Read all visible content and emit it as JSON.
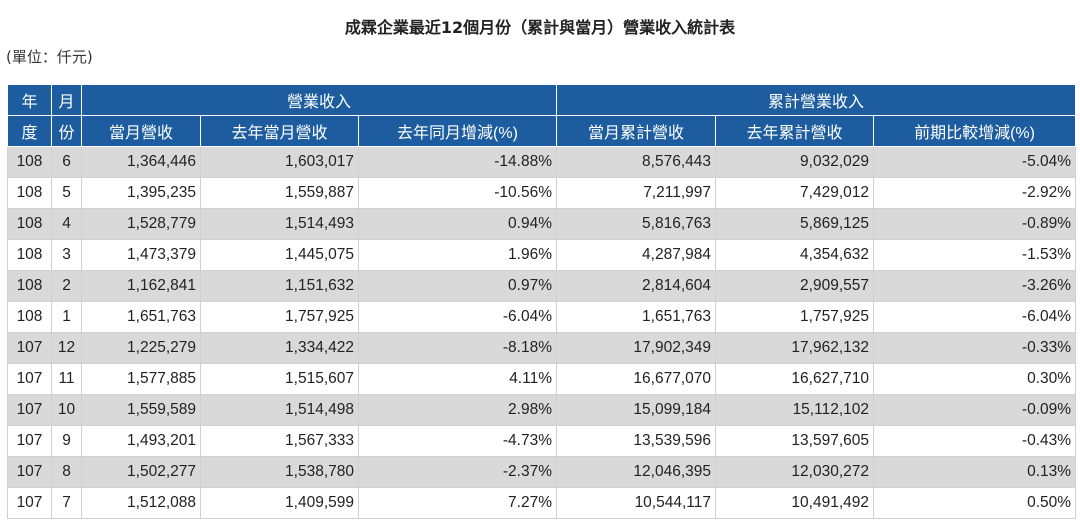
{
  "title": "成霖企業最近12個月份（累計與當月）營業收入統計表",
  "unit": "(單位：仟元)",
  "header": {
    "year_top": "年",
    "year_bottom": "度",
    "month_top": "月",
    "month_bottom": "份",
    "group_monthly": "營業收入",
    "group_cumulative": "累計營業收入",
    "columns": [
      "當月營收",
      "去年當月營收",
      "去年同月增減(%)",
      "當月累計營收",
      "去年累計營收",
      "前期比較增減(%)"
    ]
  },
  "rows": [
    {
      "year": "108",
      "month": "6",
      "cur": "1,364,446",
      "prev": "1,603,017",
      "yoy": "-14.88%",
      "cum": "8,576,443",
      "prev_cum": "9,032,029",
      "cum_chg": "-5.04%"
    },
    {
      "year": "108",
      "month": "5",
      "cur": "1,395,235",
      "prev": "1,559,887",
      "yoy": "-10.56%",
      "cum": "7,211,997",
      "prev_cum": "7,429,012",
      "cum_chg": "-2.92%"
    },
    {
      "year": "108",
      "month": "4",
      "cur": "1,528,779",
      "prev": "1,514,493",
      "yoy": "0.94%",
      "cum": "5,816,763",
      "prev_cum": "5,869,125",
      "cum_chg": "-0.89%"
    },
    {
      "year": "108",
      "month": "3",
      "cur": "1,473,379",
      "prev": "1,445,075",
      "yoy": "1.96%",
      "cum": "4,287,984",
      "prev_cum": "4,354,632",
      "cum_chg": "-1.53%"
    },
    {
      "year": "108",
      "month": "2",
      "cur": "1,162,841",
      "prev": "1,151,632",
      "yoy": "0.97%",
      "cum": "2,814,604",
      "prev_cum": "2,909,557",
      "cum_chg": "-3.26%"
    },
    {
      "year": "108",
      "month": "1",
      "cur": "1,651,763",
      "prev": "1,757,925",
      "yoy": "-6.04%",
      "cum": "1,651,763",
      "prev_cum": "1,757,925",
      "cum_chg": "-6.04%"
    },
    {
      "year": "107",
      "month": "12",
      "cur": "1,225,279",
      "prev": "1,334,422",
      "yoy": "-8.18%",
      "cum": "17,902,349",
      "prev_cum": "17,962,132",
      "cum_chg": "-0.33%"
    },
    {
      "year": "107",
      "month": "11",
      "cur": "1,577,885",
      "prev": "1,515,607",
      "yoy": "4.11%",
      "cum": "16,677,070",
      "prev_cum": "16,627,710",
      "cum_chg": "0.30%"
    },
    {
      "year": "107",
      "month": "10",
      "cur": "1,559,589",
      "prev": "1,514,498",
      "yoy": "2.98%",
      "cum": "15,099,184",
      "prev_cum": "15,112,102",
      "cum_chg": "-0.09%"
    },
    {
      "year": "107",
      "month": "9",
      "cur": "1,493,201",
      "prev": "1,567,333",
      "yoy": "-4.73%",
      "cum": "13,539,596",
      "prev_cum": "13,597,605",
      "cum_chg": "-0.43%"
    },
    {
      "year": "107",
      "month": "8",
      "cur": "1,502,277",
      "prev": "1,538,780",
      "yoy": "-2.37%",
      "cum": "12,046,395",
      "prev_cum": "12,030,272",
      "cum_chg": "0.13%"
    },
    {
      "year": "107",
      "month": "7",
      "cur": "1,512,088",
      "prev": "1,409,599",
      "yoy": "7.27%",
      "cum": "10,544,117",
      "prev_cum": "10,491,492",
      "cum_chg": "0.50%"
    }
  ],
  "colors": {
    "header_bg": "#1d5d9f",
    "row_shade": "#d9d9d9"
  }
}
